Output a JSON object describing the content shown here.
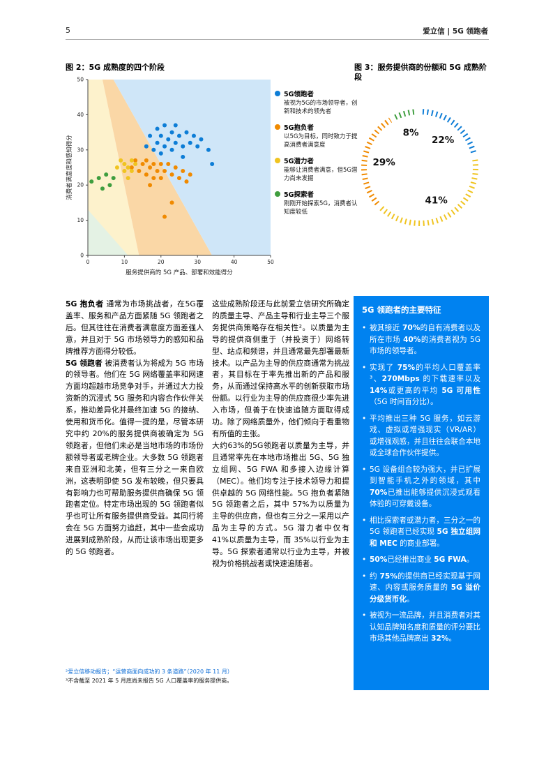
{
  "page": {
    "number": "5",
    "brand": "爱立信 | 5G 领跑者"
  },
  "figure2": {
    "title": "图 2：5G 成熟度的四个阶段",
    "legend": [
      {
        "label": "5G领跑者",
        "desc": "被视为5G的市场领导者，创新和技术的领先者",
        "color": "#0d7dd6"
      },
      {
        "label": "5G抱负者",
        "desc": "以5G为目标，同时致力于提高消费者满意度",
        "color": "#f08a00"
      },
      {
        "label": "5G潜力者",
        "desc": "能够让消费者满意，但5G潜力尚未发掘",
        "color": "#f0c420"
      },
      {
        "label": "5G探索者",
        "desc": "刚刚开始探索5G，消费者认知度较低",
        "color": "#3f9e3f"
      }
    ]
  },
  "figure3": {
    "title": "图 3：服务提供商的份额和 5G 成熟阶段"
  },
  "chart_data": [
    {
      "type": "scatter",
      "title": "图 2：5G 成熟度的四个阶段",
      "xlabel": "服务提供商的 5G 产品、部署和效能得分",
      "ylabel": "消费者满意度和感知得分",
      "xlim": [
        0,
        50
      ],
      "ylim": [
        0,
        50
      ],
      "ticks": [
        0,
        10,
        20,
        30,
        40,
        50
      ],
      "grid": false,
      "regions": [
        {
          "name": "潜力者区",
          "color": "#fdf2cc",
          "points": [
            [
              0,
              50
            ],
            [
              4,
              50
            ],
            [
              14,
              0
            ],
            [
              0,
              0
            ]
          ]
        },
        {
          "name": "抱负者区",
          "color": "#fad7a6",
          "points": [
            [
              4,
              50
            ],
            [
              7,
              50
            ],
            [
              34,
              0
            ],
            [
              14,
              0
            ]
          ]
        },
        {
          "name": "领跑者区",
          "color": "#cfe6f8",
          "points": [
            [
              7,
              50
            ],
            [
              50,
              50
            ],
            [
              50,
              0
            ],
            [
              34,
              0
            ]
          ]
        },
        {
          "name": "探索者区",
          "color": "#e4f2e4",
          "points": [
            [
              0,
              13
            ],
            [
              0,
              0
            ],
            [
              11,
              0
            ]
          ]
        }
      ],
      "series": [
        {
          "name": "5G领跑者",
          "color": "#0d7dd6",
          "points": [
            [
              16,
              31
            ],
            [
              17,
              34
            ],
            [
              18,
              30
            ],
            [
              19,
              36
            ],
            [
              19,
              32
            ],
            [
              20,
              34
            ],
            [
              20,
              29
            ],
            [
              21,
              37
            ],
            [
              21,
              31
            ],
            [
              22,
              33
            ],
            [
              23,
              35
            ],
            [
              23,
              30
            ],
            [
              24,
              37
            ],
            [
              24,
              32
            ],
            [
              25,
              34
            ],
            [
              26,
              31
            ],
            [
              26,
              28
            ],
            [
              27,
              35
            ],
            [
              28,
              32
            ],
            [
              29,
              34
            ],
            [
              30,
              31
            ],
            [
              31,
              33
            ],
            [
              33,
              30
            ],
            [
              34,
              26
            ]
          ]
        },
        {
          "name": "5G抱负者",
          "color": "#f08a00",
          "points": [
            [
              12,
              25
            ],
            [
              13,
              27
            ],
            [
              14,
              24
            ],
            [
              15,
              26
            ],
            [
              16,
              23
            ],
            [
              16,
              27
            ],
            [
              17,
              25
            ],
            [
              17,
              20
            ],
            [
              18,
              22
            ],
            [
              18,
              26
            ],
            [
              19,
              24
            ],
            [
              20,
              26
            ],
            [
              20,
              22
            ],
            [
              21,
              24
            ],
            [
              21,
              11
            ],
            [
              22,
              26
            ],
            [
              23,
              23
            ],
            [
              23,
              15
            ],
            [
              24,
              25
            ],
            [
              25,
              22
            ],
            [
              26,
              24
            ],
            [
              27,
              21
            ],
            [
              28,
              23
            ]
          ]
        },
        {
          "name": "5G潜力者",
          "color": "#f0c420",
          "points": [
            [
              8,
              25
            ],
            [
              9,
              27
            ],
            [
              10,
              24
            ],
            [
              10,
              26
            ],
            [
              11,
              25
            ],
            [
              11,
              22
            ],
            [
              12,
              27
            ],
            [
              12,
              24
            ],
            [
              13,
              26
            ]
          ]
        },
        {
          "name": "5G探索者",
          "color": "#3f9e3f",
          "points": [
            [
              1,
              21
            ],
            [
              3,
              22
            ],
            [
              4,
              19
            ],
            [
              5,
              23
            ],
            [
              6,
              20
            ],
            [
              7,
              22
            ]
          ]
        }
      ]
    },
    {
      "type": "pie",
      "style": "dashed-donut",
      "title": "图 3：服务提供商的份额和 5G 成熟阶段",
      "start_angle_deg": 0,
      "slices": [
        {
          "label": "22%",
          "value": 22,
          "color": "#0d7dd6",
          "name": "5G领跑者"
        },
        {
          "label": "41%",
          "value": 41,
          "color": "#f0c420",
          "name": "5G潜力者"
        },
        {
          "label": "29%",
          "value": 29,
          "color": "#f08a00",
          "name": "5G抱负者"
        },
        {
          "label": "8%",
          "value": 8,
          "color": "#3f9e3f",
          "name": "5G探索者"
        }
      ]
    }
  ],
  "col1": {
    "paragraphs": [
      [
        {
          "t": "5G 抱负者",
          "b": true
        },
        {
          "t": " 通常为市场挑战者，在5G覆盖率、服务和产品方面紧随 5G 领跑者之后。但其往往在消费者满意度方面差强人意，并且对于 5G 市场领导力的感知和品牌推荐方面得分较低。",
          "b": false
        }
      ],
      [
        {
          "t": "5G 领跑者",
          "b": true
        },
        {
          "t": " 被消费者认为将成为 5G 市场的领导者。他们在 5G 网络覆盖率和网速方面均超越市场竞争对手，并通过大力投资新的沉浸式 5G 服务和内容合作伙伴关系，推动差异化并最终加速 5G 的接纳、使用和货币化。值得一提的是，尽管本研究中约 20%的服务提供商被确定为 5G 领跑者，但他们未必是当地市场的市场份额领导者或老牌企业。大多数 5G 领跑者来自亚洲和北美，但有三分之一来自欧洲，这表明即使 5G 发布较晚，但只要具有影响力也可帮助服务提供商确保 5G 领跑者定位。特定市场出现的 5G 领跑者似乎也可让所有服务提供商受益。其同行将会在 5G 方面努力追赶，其中一些会成功进展到成熟阶段，从而让该市场出现更多的 5G 领跑者。",
          "b": false
        }
      ]
    ]
  },
  "col2": {
    "paragraphs": [
      [
        {
          "t": "这些成熟阶段还与此前爱立信研究所确定的质量主导、产品主导和行业主导三个服务提供商策略存在相关性²。以质量为主导的提供商侧重于（并投资于）网络转型、站点和频谱，并且通常最先部署最新技术。以产品为主导的供应商通常为挑战者，其目标在于率先推出新的产品和服务，从而通过保持高水平的创新获取市场份额。以行业为主导的供应商很少率先进入市场，但善于在快速追随方面取得成功。除了网络质量外，他们倾向于看重物有所值的主张。",
          "b": false
        }
      ],
      [
        {
          "t": "大约63%的5G领跑者以质量为主导，并且通常率先在本地市场推出 5G、5G 独立组网、5G FWA 和多接入边缘计算（MEC）。他们均专注于技术领导力和提供卓越的 5G 网络性能。5G 抱负者紧随 5G 领跑者之后，其中 57%为以质量为主导的供应商，但也有三分之一采用以产品为主导的方式。5G 潜力者中仅有 41%以质量为主导，而 35%以行业为主导。5G 探索者通常以行业为主导，并被视为价格挑战者或快速追随者。",
          "b": false
        }
      ]
    ]
  },
  "footnotes": [
    {
      "text": "²爱立信移动报告；“运营商面向成功的 3 条道路”（2020 年 11 月）",
      "link": true
    },
    {
      "text": "³不含截至 2021 年 5 月底尚未报告 5G 人口覆盖率的服务提供商。",
      "link": false
    }
  ],
  "box": {
    "title": "5G 领跑者的主要特征",
    "bullets": [
      [
        {
          "t": "被其接近 ",
          "b": false
        },
        {
          "t": "70%",
          "b": true
        },
        {
          "t": "的自有消费者以及所在市场 ",
          "b": false
        },
        {
          "t": "40%",
          "b": true
        },
        {
          "t": "的消费者视为 5G 市场的领导者。",
          "b": false
        }
      ],
      [
        {
          "t": "实现了 ",
          "b": false
        },
        {
          "t": "75%",
          "b": true
        },
        {
          "t": "的平均人口覆盖率³、",
          "b": false
        },
        {
          "t": "270Mbps",
          "b": true
        },
        {
          "t": " 的下载速率以及 ",
          "b": false
        },
        {
          "t": "14%",
          "b": true
        },
        {
          "t": "或更高的平均 ",
          "b": false
        },
        {
          "t": "5G 可用性",
          "b": true
        },
        {
          "t": "（5G 时间百分比）。",
          "b": false
        }
      ],
      [
        {
          "t": "平均推出三种 5G 服务，如云游戏、虚拟或增强现实（VR/AR）或增强观感，并且往往会联合本地或全球合作伙伴提供。",
          "b": false
        }
      ],
      [
        {
          "t": "5G 设备组合较为强大，并已扩展到智能手机之外的领域，其中 ",
          "b": false
        },
        {
          "t": "70%",
          "b": true
        },
        {
          "t": "已推出能够提供沉浸式观看体验的可穿戴设备。",
          "b": false
        }
      ],
      [
        {
          "t": "相比探索者或潜力者，三分之一的 5G 领跑者已经实现 ",
          "b": false
        },
        {
          "t": "5G 独立组网和 MEC",
          "b": true
        },
        {
          "t": " 的商业部署。",
          "b": false
        }
      ],
      [
        {
          "t": "50%",
          "b": true
        },
        {
          "t": "已经推出商业 ",
          "b": false
        },
        {
          "t": "5G FWA",
          "b": true
        },
        {
          "t": "。",
          "b": false
        }
      ],
      [
        {
          "t": "约 ",
          "b": false
        },
        {
          "t": "75%",
          "b": true
        },
        {
          "t": "的提供商已经实现基于网速、内容或服务质量的 ",
          "b": false
        },
        {
          "t": "5G 溢价分级货币化",
          "b": true
        },
        {
          "t": "。",
          "b": false
        }
      ],
      [
        {
          "t": "被视为一流品牌，并且消费者对其认知品牌知名度和质量的评分要比市场其他品牌高出 ",
          "b": false
        },
        {
          "t": "32%",
          "b": true
        },
        {
          "t": "。",
          "b": false
        }
      ]
    ]
  }
}
